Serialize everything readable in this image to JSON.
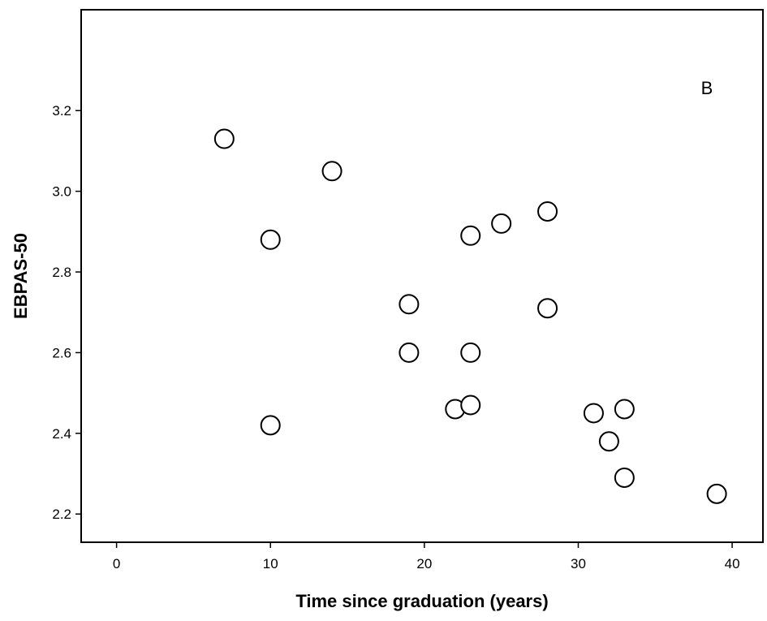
{
  "chart_data": {
    "type": "scatter",
    "xlabel": "Time since graduation (years)",
    "ylabel": "EBPAS-50",
    "annotation": "B",
    "xlim": [
      -2.3,
      42
    ],
    "ylim": [
      2.13,
      3.45
    ],
    "xticks": [
      0,
      10,
      20,
      30,
      40
    ],
    "yticks": [
      2.2,
      2.4,
      2.6,
      2.8,
      3.0,
      3.2
    ],
    "ytick_labels": [
      "2.2",
      "2.4",
      "2.6",
      "2.8",
      "3.0",
      "3.2"
    ],
    "grid": false,
    "marker": "open-circle",
    "points": [
      {
        "x": 7,
        "y": 3.13
      },
      {
        "x": 14,
        "y": 3.05
      },
      {
        "x": 10,
        "y": 2.88
      },
      {
        "x": 10,
        "y": 2.42
      },
      {
        "x": 19,
        "y": 2.72
      },
      {
        "x": 19,
        "y": 2.6
      },
      {
        "x": 22,
        "y": 2.46
      },
      {
        "x": 23,
        "y": 2.47
      },
      {
        "x": 23,
        "y": 2.6
      },
      {
        "x": 23,
        "y": 2.89
      },
      {
        "x": 25,
        "y": 2.92
      },
      {
        "x": 28,
        "y": 2.95
      },
      {
        "x": 28,
        "y": 2.71
      },
      {
        "x": 31,
        "y": 2.45
      },
      {
        "x": 32,
        "y": 2.38
      },
      {
        "x": 33,
        "y": 2.46
      },
      {
        "x": 33,
        "y": 2.29
      },
      {
        "x": 39,
        "y": 2.25
      }
    ]
  }
}
